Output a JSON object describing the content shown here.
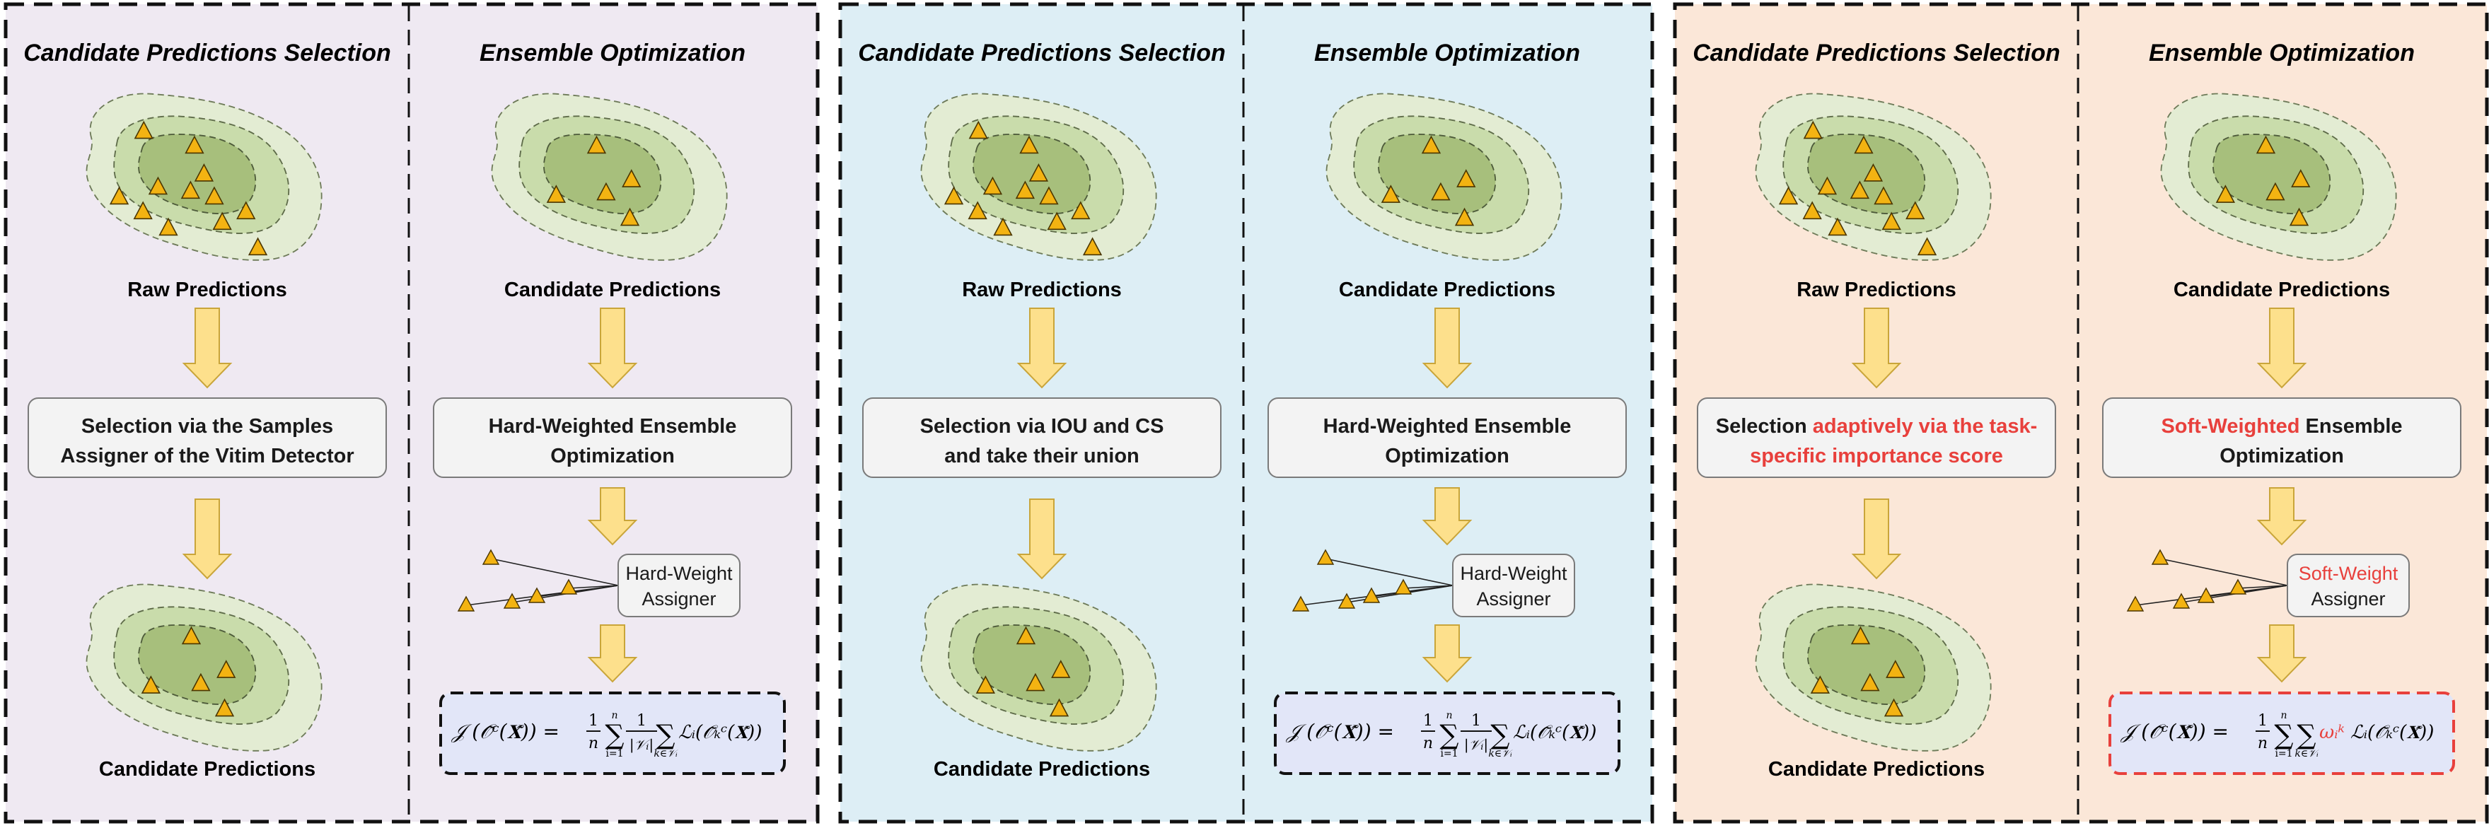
{
  "colors": {
    "panel1_bg": "#efe9f2",
    "panel2_bg": "#ddeef5",
    "panel3_bg": "#fbe7d8",
    "accent_red": "#e8403c",
    "arrow_fill": "#fde08c",
    "arrow_stroke": "#c9a53a",
    "triangle_fill": "#f3b312",
    "blob_outer": "#e3ecd3",
    "blob_mid": "#c9dcab",
    "blob_inner": "#a7bf7c",
    "formula_bg": "#e2e6f8"
  },
  "panels": [
    {
      "left_title": "Candidate Predictions Selection",
      "right_title": "Ensemble Optimization",
      "raw_label": "Raw Predictions",
      "selection_line1": [
        {
          "t": "Selection via the Samples",
          "c": "black"
        }
      ],
      "selection_line2": [
        {
          "t": "Assigner of the Vitim Detector",
          "c": "black"
        }
      ],
      "cand_bottom_label": "Candidate Predictions",
      "cand_top_label": "Candidate Predictions",
      "ensemble_line1": [
        {
          "t": "Hard-Weighted Ensemble",
          "c": "black"
        }
      ],
      "ensemble_line2": [
        {
          "t": "Optimization",
          "c": "black"
        }
      ],
      "assigner_line1": [
        {
          "t": "Hard-Weight",
          "c": "black"
        }
      ],
      "assigner_line2": [
        {
          "t": "Assigner",
          "c": "black"
        }
      ],
      "formula_variant": "hard"
    },
    {
      "left_title": "Candidate Predictions Selection",
      "right_title": "Ensemble Optimization",
      "raw_label": "Raw Predictions",
      "selection_line1": [
        {
          "t": "Selection via IOU and CS",
          "c": "black"
        }
      ],
      "selection_line2": [
        {
          "t": "and take their union",
          "c": "black"
        }
      ],
      "cand_bottom_label": "Candidate Predictions",
      "cand_top_label": "Candidate Predictions",
      "ensemble_line1": [
        {
          "t": "Hard-Weighted Ensemble",
          "c": "black"
        }
      ],
      "ensemble_line2": [
        {
          "t": "Optimization",
          "c": "black"
        }
      ],
      "assigner_line1": [
        {
          "t": "Hard-Weight",
          "c": "black"
        }
      ],
      "assigner_line2": [
        {
          "t": "Assigner",
          "c": "black"
        }
      ],
      "formula_variant": "hard"
    },
    {
      "left_title": "Candidate Predictions Selection",
      "right_title": "Ensemble Optimization",
      "raw_label": "Raw Predictions",
      "selection_line1": [
        {
          "t": "Selection ",
          "c": "black"
        },
        {
          "t": "adaptively via the task-",
          "c": "red"
        }
      ],
      "selection_line2": [
        {
          "t": "specific importance score",
          "c": "red"
        }
      ],
      "cand_bottom_label": "Candidate Predictions",
      "cand_top_label": "Candidate Predictions",
      "ensemble_line1": [
        {
          "t": "Soft-Weighted",
          "c": "red"
        },
        {
          "t": " Ensemble",
          "c": "black"
        }
      ],
      "ensemble_line2": [
        {
          "t": "Optimization",
          "c": "black"
        }
      ],
      "assigner_line1": [
        {
          "t": "Soft-Weight",
          "c": "red"
        }
      ],
      "assigner_line2": [
        {
          "t": "Assigner",
          "c": "black"
        }
      ],
      "formula_variant": "soft"
    }
  ],
  "formula": {
    "hard": {
      "lhs": "𝒥 (𝒪̃ᶜ(𝐗̃)) =",
      "frac1_num": "1",
      "frac1_den": "n",
      "sum1_top": "n",
      "sum1_bot": "i=1",
      "frac2_num": "1",
      "frac2_den": "|𝒱ᵢ|",
      "sum2_bot": "k∈𝒱ᵢ",
      "loss": "ℒᵢ(𝒪̃ₖᶜ(𝐗̃))"
    },
    "soft": {
      "lhs": "𝒥 (𝒪̃ᶜ(𝐗̃)) =",
      "frac1_num": "1",
      "frac1_den": "n",
      "sum1_top": "n",
      "sum1_bot": "i=1",
      "sum2_bot": "k∈𝒱ᵢ",
      "weight": "ωᵢᵏ",
      "loss": "ℒᵢ(𝒪̃ₖᶜ(𝐗̃))"
    }
  }
}
